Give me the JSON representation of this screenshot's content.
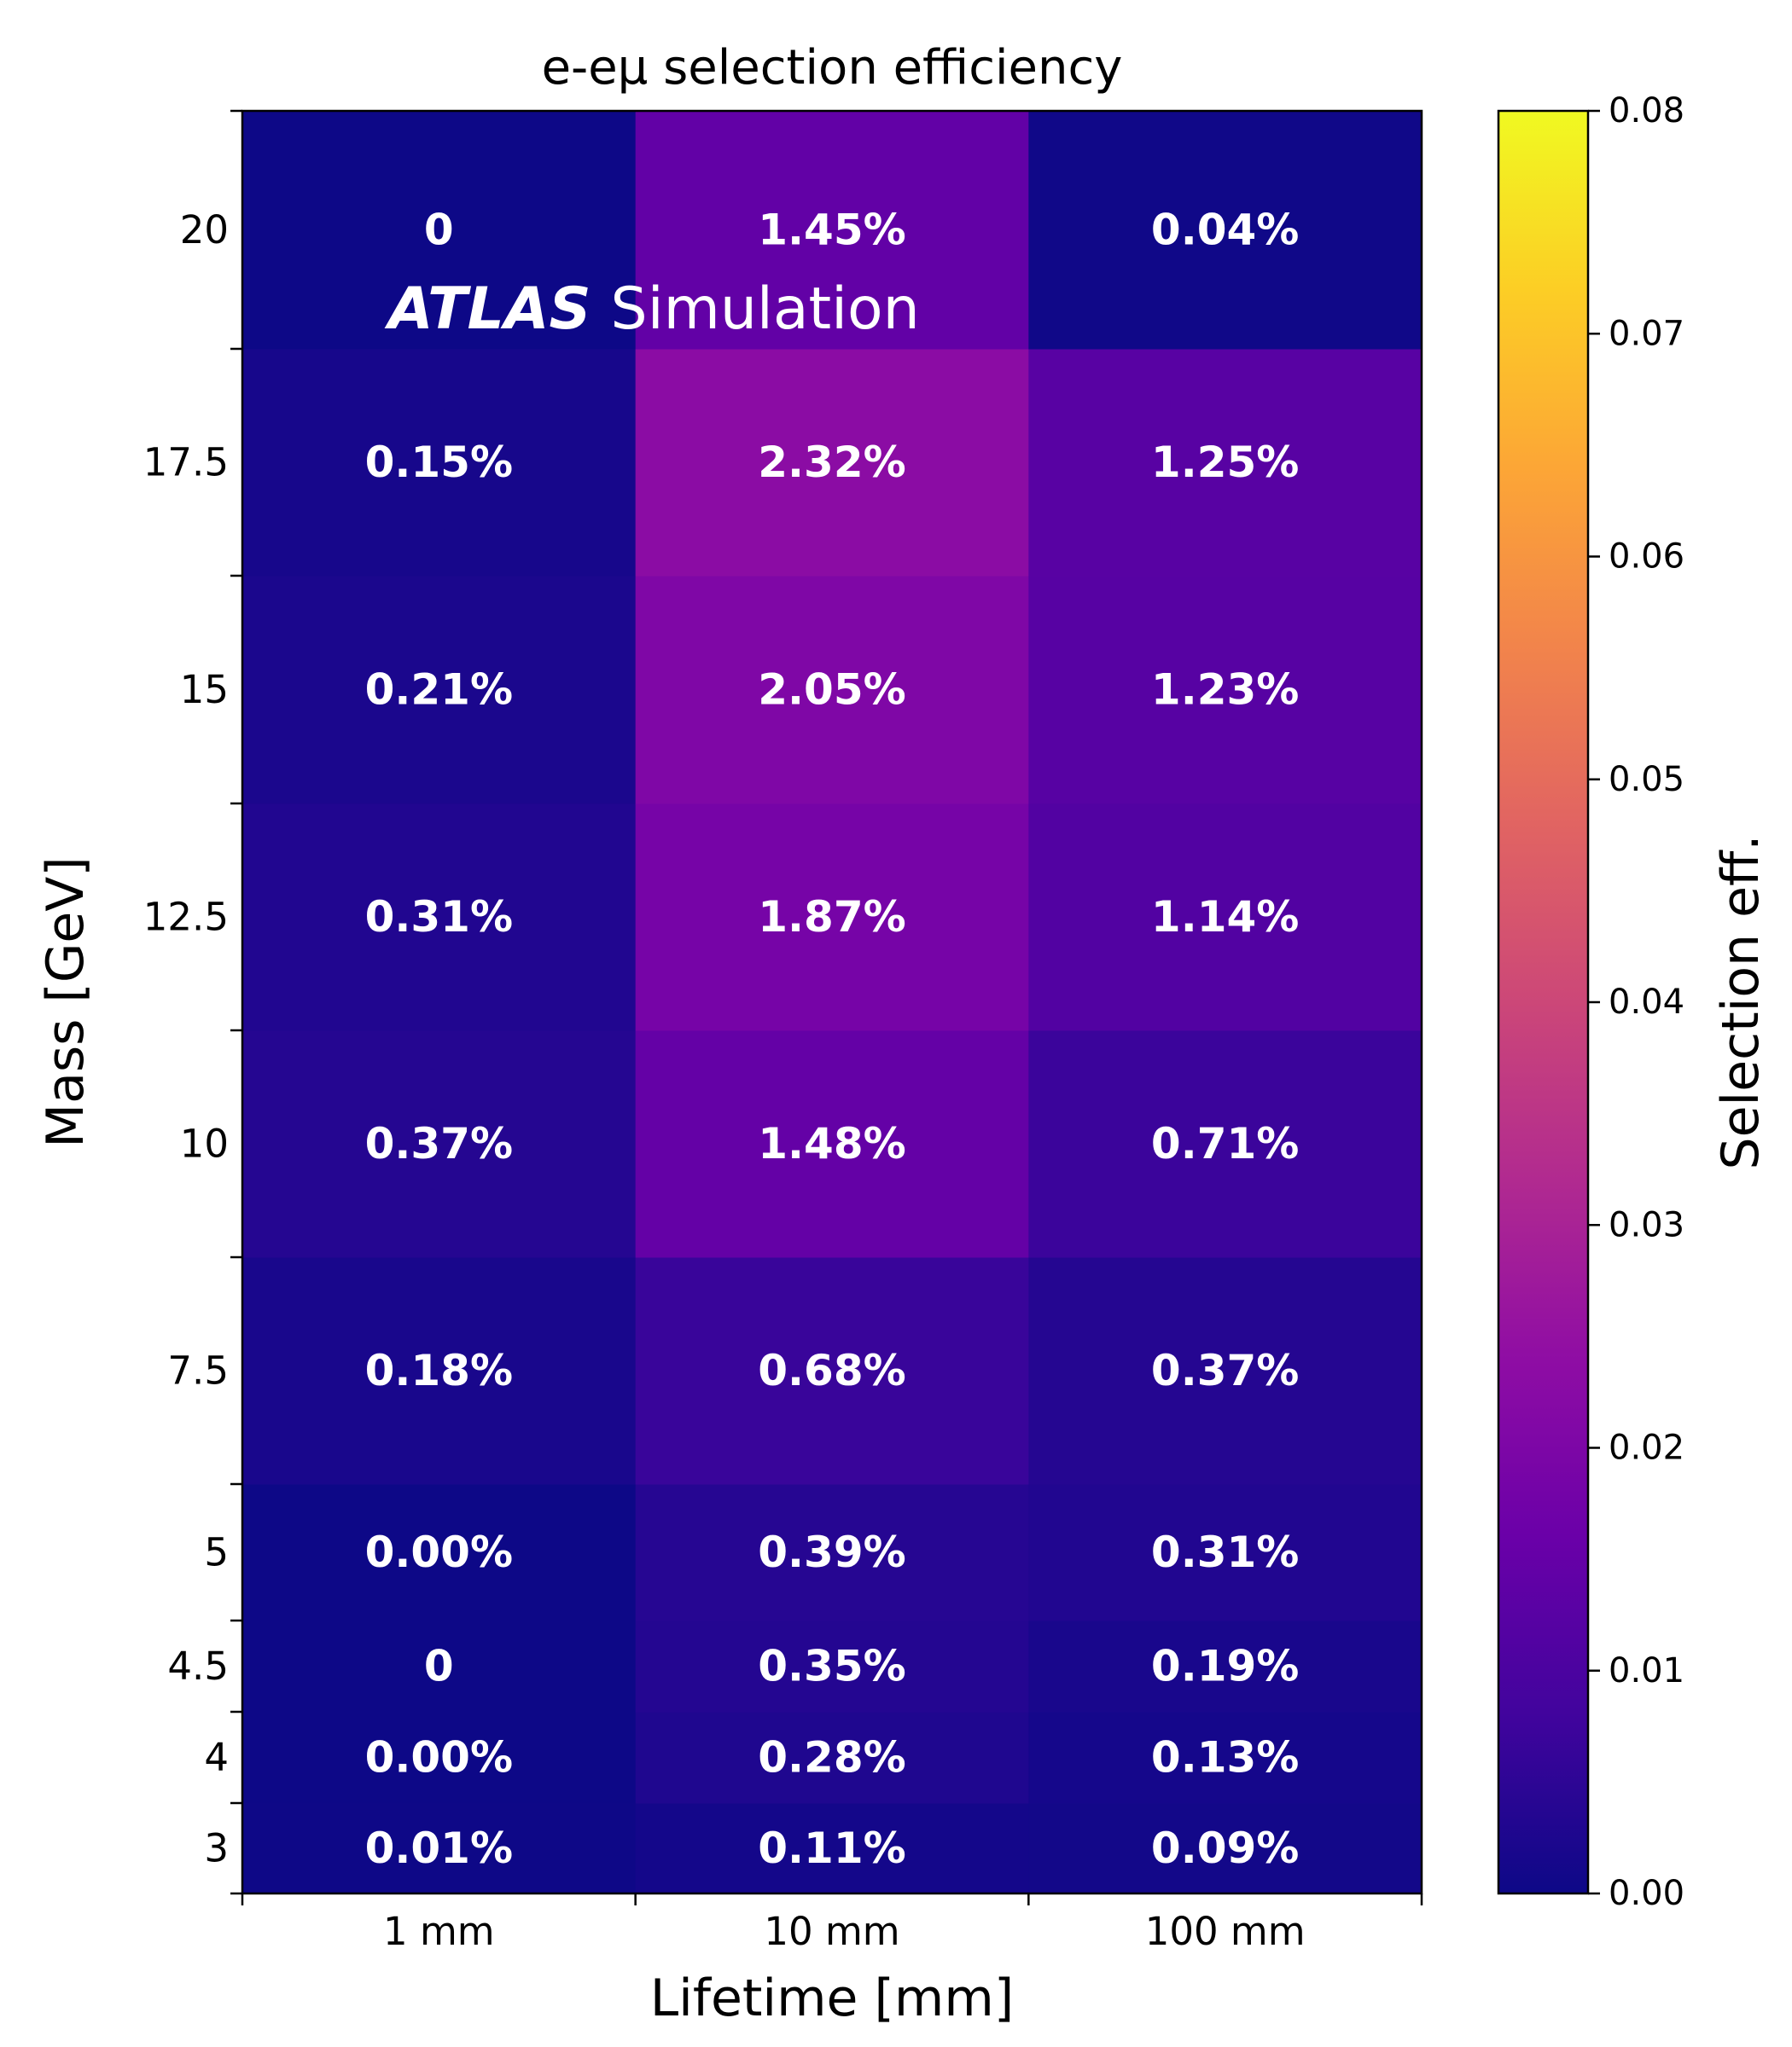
{
  "chart_data": {
    "type": "heatmap",
    "title": "e-eμ selection efficiency",
    "xlabel": "Lifetime [mm]",
    "ylabel": "Mass [GeV]",
    "x_categories": [
      "1 mm",
      "10 mm",
      "100 mm"
    ],
    "y_tick_labels": [
      "3",
      "4",
      "4.5",
      "5",
      "7.5",
      "10",
      "12.5",
      "15",
      "17.5",
      "20"
    ],
    "rows": [
      {
        "mass": "3",
        "values": [
          0.0001,
          0.0011,
          0.0009
        ],
        "labels": [
          "0.01%",
          "0.11%",
          "0.09%"
        ]
      },
      {
        "mass": "4",
        "values": [
          0.0,
          0.0028,
          0.0013
        ],
        "labels": [
          "0.00%",
          "0.28%",
          "0.13%"
        ]
      },
      {
        "mass": "4.5",
        "values": [
          0.0,
          0.0035,
          0.0019
        ],
        "labels": [
          "0",
          "0.35%",
          "0.19%"
        ]
      },
      {
        "mass": "5",
        "values": [
          0.0,
          0.0039,
          0.0031
        ],
        "labels": [
          "0.00%",
          "0.39%",
          "0.31%"
        ]
      },
      {
        "mass": "7.5",
        "values": [
          0.0018,
          0.0068,
          0.0037
        ],
        "labels": [
          "0.18%",
          "0.68%",
          "0.37%"
        ]
      },
      {
        "mass": "10",
        "values": [
          0.0037,
          0.0148,
          0.0071
        ],
        "labels": [
          "0.37%",
          "1.48%",
          "0.71%"
        ]
      },
      {
        "mass": "12.5",
        "values": [
          0.0031,
          0.0187,
          0.0114
        ],
        "labels": [
          "0.31%",
          "1.87%",
          "1.14%"
        ]
      },
      {
        "mass": "15",
        "values": [
          0.0021,
          0.0205,
          0.0123
        ],
        "labels": [
          "0.21%",
          "2.05%",
          "1.23%"
        ]
      },
      {
        "mass": "17.5",
        "values": [
          0.0015,
          0.0232,
          0.0125
        ],
        "labels": [
          "0.15%",
          "2.32%",
          "1.25%"
        ]
      },
      {
        "mass": "20",
        "values": [
          0.0,
          0.0145,
          0.0004
        ],
        "labels": [
          "0",
          "1.45%",
          "0.04%"
        ]
      }
    ],
    "colorbar": {
      "label": "Selection eff.",
      "colormap": "plasma",
      "range": [
        0.0,
        0.08
      ],
      "ticks": [
        "0.00",
        "0.01",
        "0.02",
        "0.03",
        "0.04",
        "0.05",
        "0.06",
        "0.07",
        "0.08"
      ]
    },
    "annotation": {
      "bold": "ATLAS",
      "normal": "Simulation"
    }
  }
}
